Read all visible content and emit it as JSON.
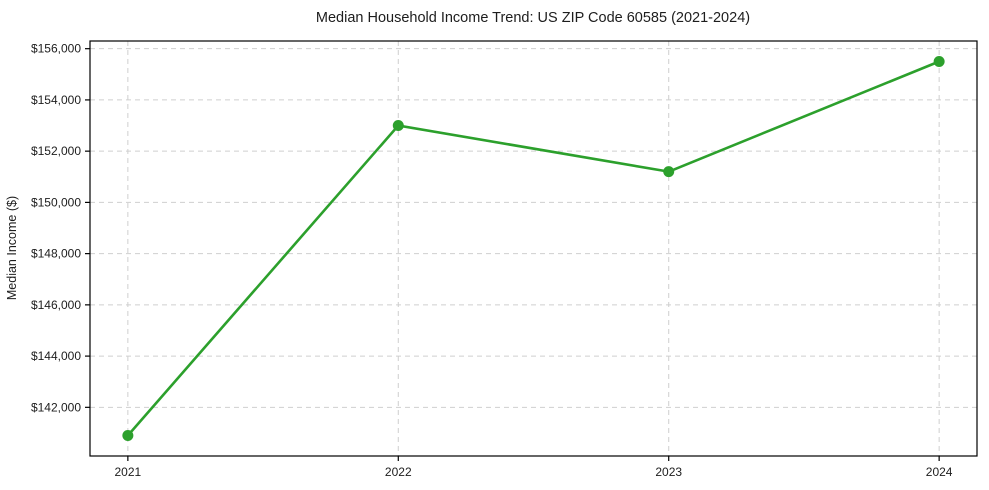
{
  "figure": {
    "background": "#ffffff"
  },
  "chart_data": {
    "type": "line",
    "title": "Median Household Income Trend: US ZIP Code 60585 (2021-2024)",
    "xlabel": "",
    "ylabel": "Median Income ($)",
    "x": [
      2021,
      2022,
      2023,
      2024
    ],
    "xtick_labels": [
      "2021",
      "2022",
      "2023",
      "2024"
    ],
    "ytick_values": [
      142000,
      144000,
      146000,
      148000,
      150000,
      152000,
      154000,
      156000
    ],
    "ytick_labels": [
      "$142,000",
      "$144,000",
      "$146,000",
      "$148,000",
      "$150,000",
      "$152,000",
      "$154,000",
      "$156,000"
    ],
    "series": [
      {
        "name": "Median Income",
        "values": [
          140900,
          153000,
          151200,
          155500
        ],
        "color": "#2ca02c",
        "marker": "circle"
      }
    ],
    "xlim": [
      2020.86,
      2024.14
    ],
    "ylim": [
      140100,
      156300
    ],
    "grid": true,
    "grid_color": "#cfcfcf",
    "grid_dash": "5 4",
    "axis_color": "#000000",
    "text_color": "#1d1d1d",
    "legend": "none"
  }
}
